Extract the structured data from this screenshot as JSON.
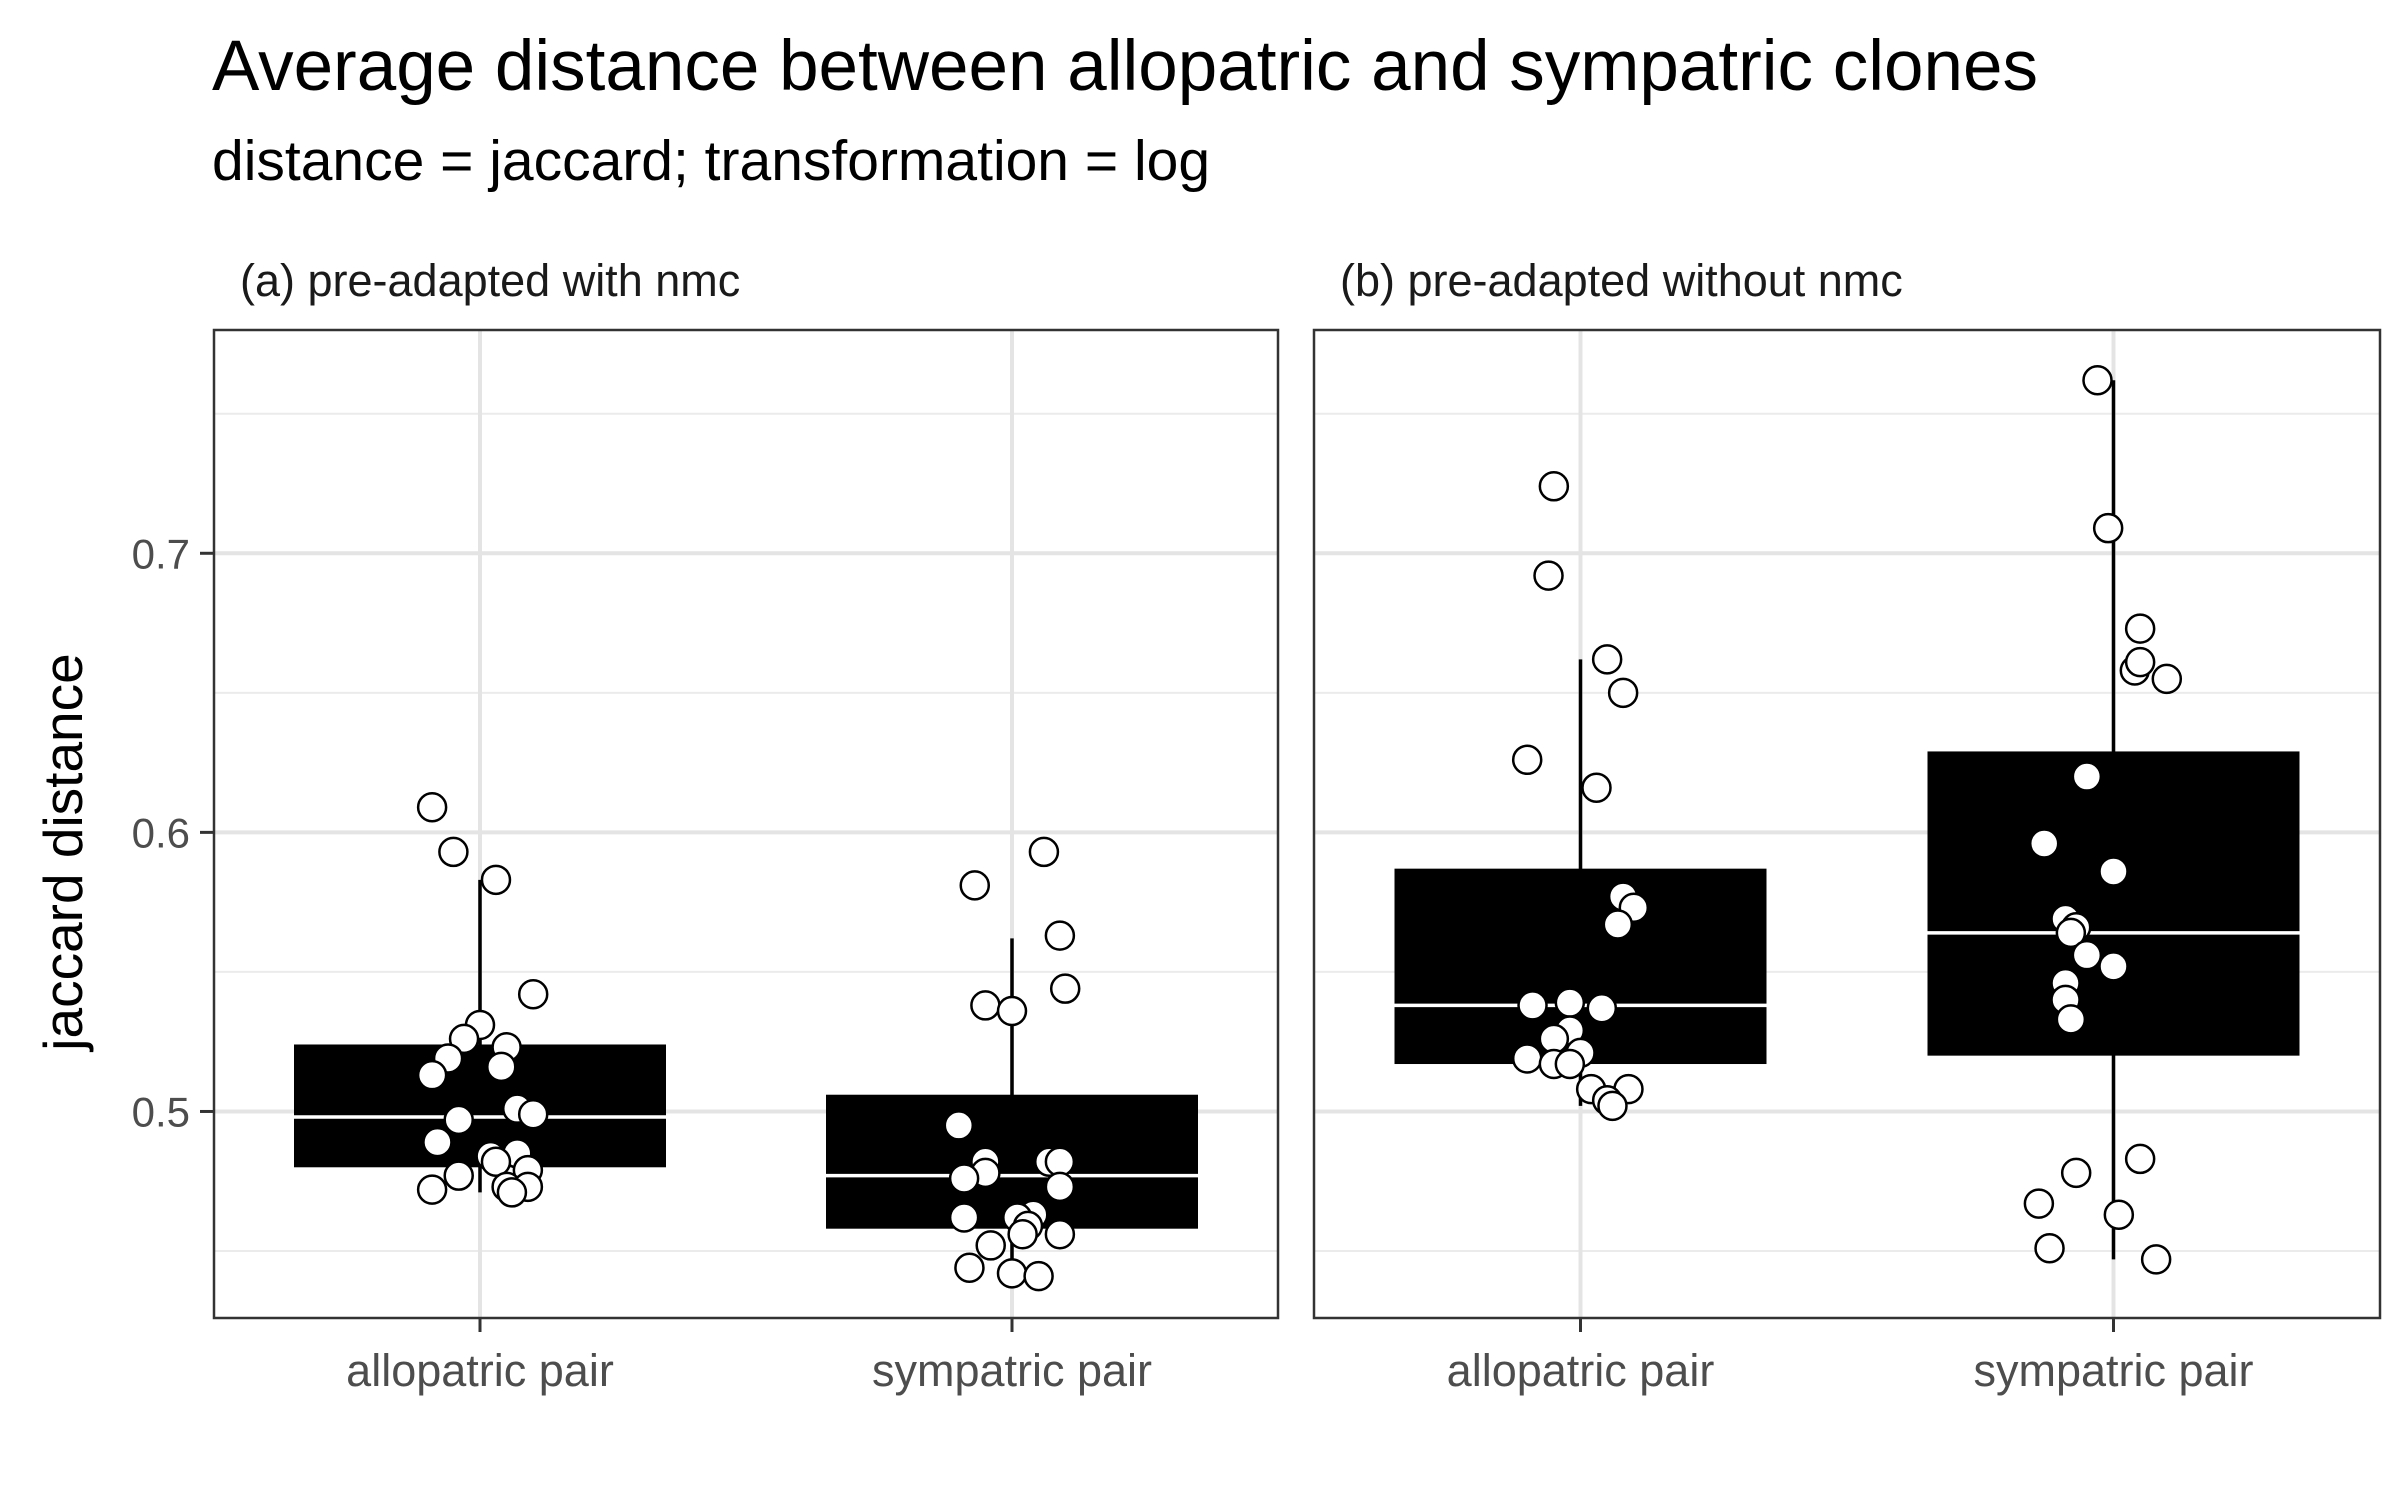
{
  "chart_data": {
    "type": "box",
    "title": "Average distance between allopatric and sympatric clones",
    "subtitle": "distance = jaccard; transformation = log",
    "ylabel": "jaccard distance",
    "ylim": [
      0.426,
      0.78
    ],
    "y_ticks": [
      0.5,
      0.6,
      0.7
    ],
    "y_tick_labels": [
      "0.5",
      "0.6",
      "0.7"
    ],
    "y_minor_ticks": [
      0.45,
      0.55,
      0.65,
      0.75
    ],
    "categories": [
      "allopatric pair",
      "sympatric pair"
    ],
    "grid": true,
    "panels": [
      {
        "label": "(a) pre-adapted with nmc",
        "boxes": [
          {
            "category": "allopatric pair",
            "q1": 0.48,
            "median": 0.498,
            "q3": 0.524,
            "whisker_low": 0.471,
            "whisker_high": 0.583,
            "points": [
              {
                "x": -0.09,
                "y": 0.609
              },
              {
                "x": -0.05,
                "y": 0.593
              },
              {
                "x": 0.03,
                "y": 0.583
              },
              {
                "x": 0.1,
                "y": 0.542
              },
              {
                "x": 0.0,
                "y": 0.531
              },
              {
                "x": -0.03,
                "y": 0.526
              },
              {
                "x": 0.05,
                "y": 0.523
              },
              {
                "x": -0.06,
                "y": 0.519
              },
              {
                "x": 0.04,
                "y": 0.516
              },
              {
                "x": -0.09,
                "y": 0.513
              },
              {
                "x": 0.07,
                "y": 0.501
              },
              {
                "x": 0.1,
                "y": 0.499
              },
              {
                "x": -0.04,
                "y": 0.497
              },
              {
                "x": -0.08,
                "y": 0.489
              },
              {
                "x": 0.07,
                "y": 0.485
              },
              {
                "x": 0.02,
                "y": 0.484
              },
              {
                "x": 0.03,
                "y": 0.482
              },
              {
                "x": 0.09,
                "y": 0.479
              },
              {
                "x": -0.04,
                "y": 0.477
              },
              {
                "x": 0.05,
                "y": 0.473
              },
              {
                "x": 0.09,
                "y": 0.473
              },
              {
                "x": -0.09,
                "y": 0.472
              },
              {
                "x": 0.06,
                "y": 0.471
              }
            ]
          },
          {
            "category": "sympatric pair",
            "q1": 0.458,
            "median": 0.477,
            "q3": 0.506,
            "whisker_low": 0.44,
            "whisker_high": 0.562,
            "points": [
              {
                "x": 0.06,
                "y": 0.593
              },
              {
                "x": -0.07,
                "y": 0.581
              },
              {
                "x": 0.09,
                "y": 0.563
              },
              {
                "x": 0.1,
                "y": 0.544
              },
              {
                "x": -0.05,
                "y": 0.538
              },
              {
                "x": 0.0,
                "y": 0.536
              },
              {
                "x": -0.1,
                "y": 0.495
              },
              {
                "x": -0.05,
                "y": 0.482
              },
              {
                "x": 0.07,
                "y": 0.482
              },
              {
                "x": 0.09,
                "y": 0.482
              },
              {
                "x": -0.05,
                "y": 0.478
              },
              {
                "x": -0.09,
                "y": 0.476
              },
              {
                "x": 0.09,
                "y": 0.473
              },
              {
                "x": 0.04,
                "y": 0.463
              },
              {
                "x": 0.01,
                "y": 0.462
              },
              {
                "x": -0.09,
                "y": 0.462
              },
              {
                "x": 0.03,
                "y": 0.459
              },
              {
                "x": 0.02,
                "y": 0.456
              },
              {
                "x": 0.09,
                "y": 0.456
              },
              {
                "x": -0.04,
                "y": 0.452
              },
              {
                "x": -0.08,
                "y": 0.444
              },
              {
                "x": 0.0,
                "y": 0.442
              },
              {
                "x": 0.05,
                "y": 0.441
              }
            ]
          }
        ]
      },
      {
        "label": "(b) pre-adapted without nmc",
        "boxes": [
          {
            "category": "allopatric pair",
            "q1": 0.517,
            "median": 0.538,
            "q3": 0.587,
            "whisker_low": 0.502,
            "whisker_high": 0.662,
            "points": [
              {
                "x": -0.05,
                "y": 0.724
              },
              {
                "x": -0.06,
                "y": 0.692
              },
              {
                "x": 0.05,
                "y": 0.662
              },
              {
                "x": 0.08,
                "y": 0.65
              },
              {
                "x": -0.1,
                "y": 0.626
              },
              {
                "x": 0.03,
                "y": 0.616
              },
              {
                "x": 0.08,
                "y": 0.577
              },
              {
                "x": 0.1,
                "y": 0.573
              },
              {
                "x": 0.07,
                "y": 0.567
              },
              {
                "x": -0.02,
                "y": 0.539
              },
              {
                "x": -0.09,
                "y": 0.538
              },
              {
                "x": 0.04,
                "y": 0.537
              },
              {
                "x": -0.02,
                "y": 0.529
              },
              {
                "x": -0.05,
                "y": 0.526
              },
              {
                "x": 0.0,
                "y": 0.521
              },
              {
                "x": -0.1,
                "y": 0.519
              },
              {
                "x": -0.05,
                "y": 0.517
              },
              {
                "x": -0.02,
                "y": 0.517
              },
              {
                "x": 0.09,
                "y": 0.508
              },
              {
                "x": 0.02,
                "y": 0.508
              },
              {
                "x": 0.05,
                "y": 0.504
              },
              {
                "x": 0.06,
                "y": 0.502
              }
            ]
          },
          {
            "category": "sympatric pair",
            "q1": 0.52,
            "median": 0.564,
            "q3": 0.629,
            "whisker_low": 0.447,
            "whisker_high": 0.762,
            "points": [
              {
                "x": -0.03,
                "y": 0.762
              },
              {
                "x": -0.01,
                "y": 0.709
              },
              {
                "x": 0.05,
                "y": 0.673
              },
              {
                "x": 0.04,
                "y": 0.658
              },
              {
                "x": 0.05,
                "y": 0.661
              },
              {
                "x": 0.1,
                "y": 0.655
              },
              {
                "x": -0.05,
                "y": 0.62
              },
              {
                "x": -0.13,
                "y": 0.596
              },
              {
                "x": 0.0,
                "y": 0.586
              },
              {
                "x": -0.09,
                "y": 0.569
              },
              {
                "x": -0.07,
                "y": 0.566
              },
              {
                "x": -0.08,
                "y": 0.564
              },
              {
                "x": -0.05,
                "y": 0.556
              },
              {
                "x": 0.0,
                "y": 0.552
              },
              {
                "x": -0.09,
                "y": 0.546
              },
              {
                "x": -0.09,
                "y": 0.54
              },
              {
                "x": -0.08,
                "y": 0.533
              },
              {
                "x": 0.05,
                "y": 0.483
              },
              {
                "x": -0.07,
                "y": 0.478
              },
              {
                "x": -0.14,
                "y": 0.467
              },
              {
                "x": 0.01,
                "y": 0.463
              },
              {
                "x": -0.12,
                "y": 0.451
              },
              {
                "x": 0.08,
                "y": 0.447
              }
            ]
          }
        ]
      }
    ]
  }
}
